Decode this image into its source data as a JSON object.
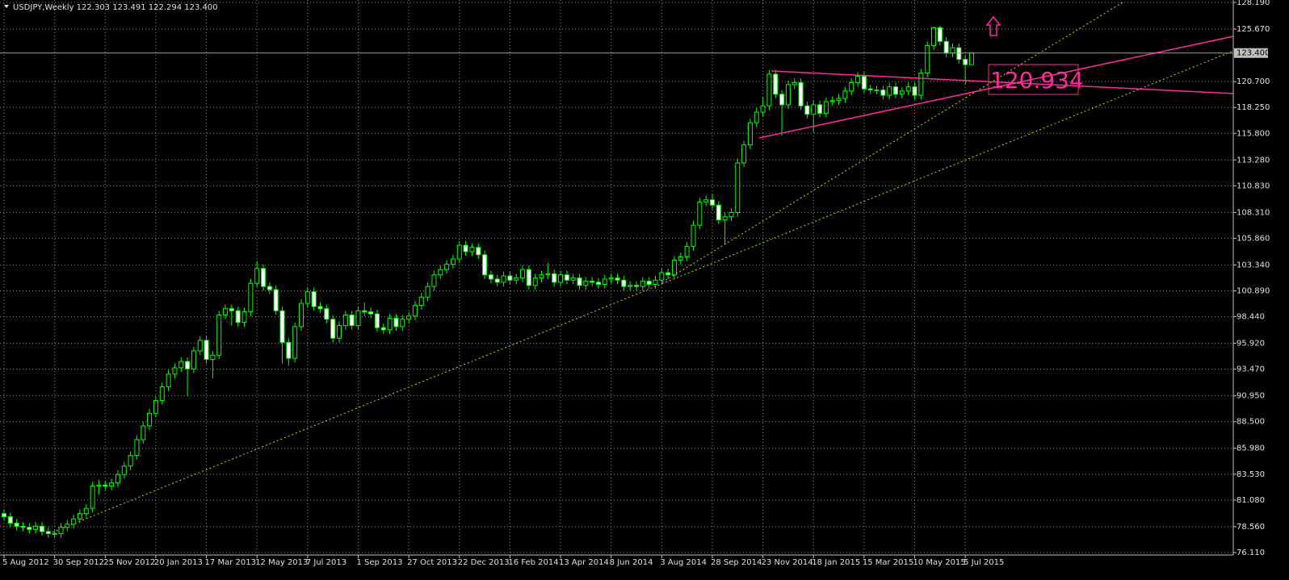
{
  "chart_data": {
    "type": "candlestick",
    "title": "USDJPY,Weekly  122.303 123.491 122.294 123.400",
    "categories": [
      "5 Aug 2012",
      null,
      null,
      null,
      null,
      null,
      null,
      null,
      "30 Sep 2012",
      null,
      null,
      null,
      null,
      null,
      null,
      null,
      "25 Nov 2012",
      null,
      null,
      null,
      null,
      null,
      null,
      null,
      "20 Jan 2013",
      null,
      null,
      null,
      null,
      null,
      null,
      null,
      "17 Mar 2013",
      null,
      null,
      null,
      null,
      null,
      null,
      null,
      "12 May 2013",
      null,
      null,
      null,
      null,
      null,
      null,
      null,
      "7 Jul 2013",
      null,
      null,
      null,
      null,
      null,
      null,
      null,
      "1 Sep 2013",
      null,
      null,
      null,
      null,
      null,
      null,
      null,
      "27 Oct 2013",
      null,
      null,
      null,
      null,
      null,
      null,
      null,
      "22 Dec 2013",
      null,
      null,
      null,
      null,
      null,
      null,
      null,
      "16 Feb 2014",
      null,
      null,
      null,
      null,
      null,
      null,
      null,
      "13 Apr 2014",
      null,
      null,
      null,
      null,
      null,
      null,
      null,
      "8 Jun 2014",
      null,
      null,
      null,
      null,
      null,
      null,
      null,
      "3 Aug 2014",
      null,
      null,
      null,
      null,
      null,
      null,
      null,
      "28 Sep 2014",
      null,
      null,
      null,
      null,
      null,
      null,
      null,
      "23 Nov 2014",
      null,
      null,
      null,
      null,
      null,
      null,
      null,
      "18 Jan 2015",
      null,
      null,
      null,
      null,
      null,
      null,
      null,
      "15 Mar 2015",
      null,
      null,
      null,
      null,
      null,
      null,
      null,
      "10 May 2015",
      null,
      null,
      null,
      null,
      null,
      null,
      null,
      "5 Jul 2015",
      null
    ],
    "open": [
      79.8,
      79.5,
      78.9,
      78.6,
      78.5,
      78.3,
      78.6,
      78.1,
      77.9,
      77.9,
      78.5,
      78.8,
      79.3,
      79.8,
      80.3,
      82.4,
      82.5,
      82.4,
      82.7,
      83.5,
      84.3,
      85.3,
      86.8,
      88.1,
      89.3,
      90.5,
      91.8,
      93.0,
      93.6,
      94.2,
      93.5,
      95.2,
      96.2,
      94.4,
      94.8,
      98.6,
      99.2,
      99.0,
      97.9,
      98.9,
      101.6,
      103.0,
      101.3,
      101.0,
      99.0,
      96.0,
      94.5,
      97.5,
      99.7,
      100.8,
      99.4,
      99.2,
      98.2,
      96.4,
      97.6,
      98.6,
      97.6,
      99.0,
      98.9,
      98.7,
      97.4,
      97.2,
      98.3,
      97.5,
      98.2,
      98.5,
      99.5,
      100.3,
      101.3,
      102.4,
      102.9,
      103.4,
      103.9,
      105.2,
      104.6,
      105.0,
      104.3,
      102.4,
      102.0,
      101.7,
      102.3,
      101.9,
      102.1,
      102.9,
      101.4,
      102.1,
      102.4,
      102.5,
      101.7,
      102.4,
      101.9,
      102.1,
      101.4,
      101.8,
      101.7,
      101.5,
      102.0,
      102.1,
      101.9,
      101.3,
      101.4,
      101.3,
      101.8,
      101.5,
      101.9,
      102.6,
      102.4,
      103.8,
      104.1,
      105.1,
      107.1,
      109.3,
      109.5,
      109.0,
      107.6,
      107.9,
      108.3,
      113.0,
      114.7,
      116.8,
      117.8,
      118.4,
      121.4,
      119.5,
      118.5,
      120.4,
      120.6,
      118.4,
      117.6,
      118.5,
      117.7,
      118.8,
      118.9,
      119.1,
      119.8,
      120.6,
      121.2,
      120.0,
      119.9,
      119.9,
      119.4,
      120.2,
      119.5,
      119.8,
      120.2,
      119.4,
      121.5,
      124.1,
      125.8,
      124.5,
      123.4,
      123.9,
      122.8,
      122.303
    ],
    "high": [
      80.2,
      79.9,
      79.3,
      79.0,
      78.9,
      79.0,
      79.0,
      78.5,
      78.3,
      78.9,
      79.2,
      79.7,
      80.2,
      80.7,
      82.8,
      83.0,
      82.9,
      83.1,
      83.9,
      84.7,
      85.7,
      87.2,
      88.5,
      89.7,
      90.9,
      92.2,
      93.4,
      94.0,
      94.6,
      94.6,
      95.6,
      96.6,
      96.6,
      95.2,
      99.0,
      99.6,
      99.6,
      99.4,
      99.3,
      102.0,
      103.7,
      103.4,
      101.7,
      101.4,
      99.4,
      96.4,
      97.9,
      100.1,
      101.2,
      101.2,
      99.8,
      99.6,
      98.6,
      98.0,
      99.0,
      99.0,
      99.4,
      99.8,
      99.3,
      99.1,
      97.8,
      98.7,
      98.7,
      98.6,
      98.9,
      99.9,
      100.7,
      101.7,
      102.8,
      103.3,
      103.8,
      104.3,
      105.6,
      105.6,
      105.4,
      105.4,
      104.7,
      102.8,
      102.4,
      102.7,
      102.7,
      102.5,
      103.3,
      103.3,
      102.5,
      102.8,
      103.5,
      102.9,
      102.8,
      102.8,
      102.5,
      102.5,
      102.2,
      102.2,
      102.1,
      102.4,
      102.5,
      102.5,
      102.3,
      101.8,
      101.8,
      102.2,
      102.2,
      102.3,
      103.0,
      103.0,
      104.2,
      104.5,
      105.5,
      107.5,
      109.7,
      109.9,
      110.1,
      109.4,
      108.3,
      108.7,
      113.4,
      115.1,
      117.2,
      118.2,
      119.2,
      121.8,
      121.8,
      119.9,
      120.8,
      121.0,
      121.0,
      118.8,
      118.9,
      118.9,
      119.2,
      119.3,
      119.5,
      120.2,
      121.0,
      121.6,
      121.6,
      120.4,
      120.3,
      120.3,
      120.6,
      120.6,
      120.2,
      120.6,
      120.6,
      121.9,
      124.5,
      125.9,
      126.0,
      124.9,
      124.3,
      124.3,
      123.2,
      123.491
    ],
    "low": [
      79.1,
      78.5,
      78.2,
      78.1,
      77.9,
      77.9,
      77.7,
      77.5,
      77.5,
      77.5,
      78.1,
      78.4,
      78.9,
      79.4,
      79.9,
      81.6,
      82.0,
      82.0,
      82.3,
      83.1,
      83.9,
      84.9,
      86.4,
      87.7,
      88.9,
      90.1,
      91.4,
      92.6,
      93.2,
      90.9,
      93.1,
      94.8,
      94.0,
      92.6,
      94.4,
      98.2,
      97.6,
      97.5,
      97.5,
      98.5,
      101.2,
      100.9,
      100.6,
      98.6,
      94.0,
      93.8,
      94.1,
      97.1,
      99.3,
      99.0,
      98.8,
      97.8,
      96.0,
      96.0,
      97.2,
      97.2,
      97.2,
      98.5,
      98.3,
      97.0,
      96.8,
      96.8,
      97.1,
      97.1,
      97.8,
      98.1,
      99.1,
      99.9,
      100.9,
      102.0,
      102.5,
      103.0,
      103.5,
      104.2,
      104.2,
      103.9,
      102.0,
      101.6,
      101.3,
      101.3,
      101.5,
      101.5,
      101.7,
      101.0,
      101.0,
      101.7,
      102.0,
      101.3,
      101.3,
      101.5,
      101.5,
      101.0,
      101.0,
      101.3,
      101.1,
      101.1,
      101.6,
      101.5,
      100.9,
      100.9,
      100.9,
      100.9,
      101.1,
      101.1,
      101.5,
      102.0,
      102.0,
      103.4,
      103.7,
      104.7,
      106.7,
      108.9,
      108.6,
      107.2,
      105.3,
      107.5,
      107.9,
      112.6,
      114.3,
      116.4,
      117.4,
      118.0,
      119.1,
      115.6,
      118.1,
      120.0,
      118.0,
      117.2,
      115.9,
      117.3,
      117.3,
      118.4,
      118.5,
      118.7,
      119.4,
      120.2,
      119.6,
      119.5,
      119.5,
      119.0,
      119.0,
      119.1,
      119.1,
      119.4,
      119.0,
      119.0,
      121.1,
      123.7,
      124.1,
      123.0,
      123.0,
      122.4,
      120.4,
      122.294
    ],
    "close": [
      79.5,
      78.9,
      78.6,
      78.5,
      78.3,
      78.6,
      78.1,
      77.9,
      77.9,
      78.5,
      78.8,
      79.3,
      79.8,
      80.3,
      82.4,
      82.5,
      82.4,
      82.7,
      83.5,
      84.3,
      85.3,
      86.8,
      88.1,
      89.3,
      90.5,
      91.8,
      93.0,
      93.6,
      94.2,
      93.5,
      95.2,
      96.2,
      94.4,
      94.8,
      98.6,
      99.2,
      99.0,
      97.9,
      98.9,
      101.6,
      103.0,
      101.3,
      101.0,
      99.0,
      96.0,
      94.5,
      97.5,
      99.7,
      100.8,
      99.4,
      99.2,
      98.2,
      96.4,
      97.6,
      98.6,
      97.6,
      99.0,
      98.9,
      98.7,
      97.4,
      97.2,
      98.3,
      97.5,
      98.2,
      98.5,
      99.5,
      100.3,
      101.3,
      102.4,
      102.9,
      103.4,
      103.9,
      105.2,
      104.6,
      105.0,
      104.3,
      102.4,
      102.0,
      101.7,
      102.3,
      101.9,
      102.1,
      102.9,
      101.4,
      102.1,
      102.4,
      102.5,
      101.7,
      102.4,
      101.9,
      102.1,
      101.4,
      101.8,
      101.7,
      101.5,
      102.0,
      102.1,
      101.9,
      101.3,
      101.4,
      101.3,
      101.8,
      101.5,
      101.9,
      102.6,
      102.4,
      103.8,
      104.1,
      105.1,
      107.1,
      109.3,
      109.5,
      109.0,
      107.6,
      107.9,
      108.3,
      113.0,
      114.7,
      116.8,
      117.8,
      118.4,
      121.4,
      119.5,
      118.5,
      120.4,
      120.6,
      118.4,
      117.6,
      118.5,
      117.7,
      118.8,
      118.9,
      119.1,
      119.8,
      120.6,
      121.2,
      120.0,
      119.9,
      119.9,
      119.4,
      120.2,
      119.5,
      119.8,
      120.2,
      119.4,
      121.5,
      124.1,
      125.8,
      124.5,
      123.4,
      123.9,
      122.8,
      122.3,
      123.4
    ],
    "up_color": "#000000",
    "down_color": "#ffffff",
    "wick_color": "#00ff00",
    "ylim": [
      75.88,
      128.42
    ],
    "yticks": [
      {
        "value": 128.19,
        "label": "128.190"
      },
      {
        "value": 125.67,
        "label": "125.670"
      },
      {
        "value": 120.7,
        "label": "120.700"
      },
      {
        "value": 118.25,
        "label": "118.250"
      },
      {
        "value": 115.8,
        "label": "115.800"
      },
      {
        "value": 113.28,
        "label": "113.280"
      },
      {
        "value": 110.83,
        "label": "110.830"
      },
      {
        "value": 108.31,
        "label": "108.310"
      },
      {
        "value": 105.86,
        "label": "105.860"
      },
      {
        "value": 103.34,
        "label": "103.340"
      },
      {
        "value": 100.89,
        "label": "100.890"
      },
      {
        "value": 98.44,
        "label": "98.440"
      },
      {
        "value": 95.92,
        "label": "95.920"
      },
      {
        "value": 93.47,
        "label": "93.470"
      },
      {
        "value": 90.95,
        "label": "90.950"
      },
      {
        "value": 88.5,
        "label": "88.500"
      },
      {
        "value": 85.98,
        "label": "85.980"
      },
      {
        "value": 83.53,
        "label": "83.530"
      },
      {
        "value": 81.08,
        "label": "81.080"
      },
      {
        "value": 78.56,
        "label": "78.560"
      },
      {
        "value": 76.11,
        "label": "76.110"
      }
    ],
    "last_price": {
      "value": 123.4,
      "label": "123.400"
    },
    "price_label": "120.934",
    "grid": true
  }
}
